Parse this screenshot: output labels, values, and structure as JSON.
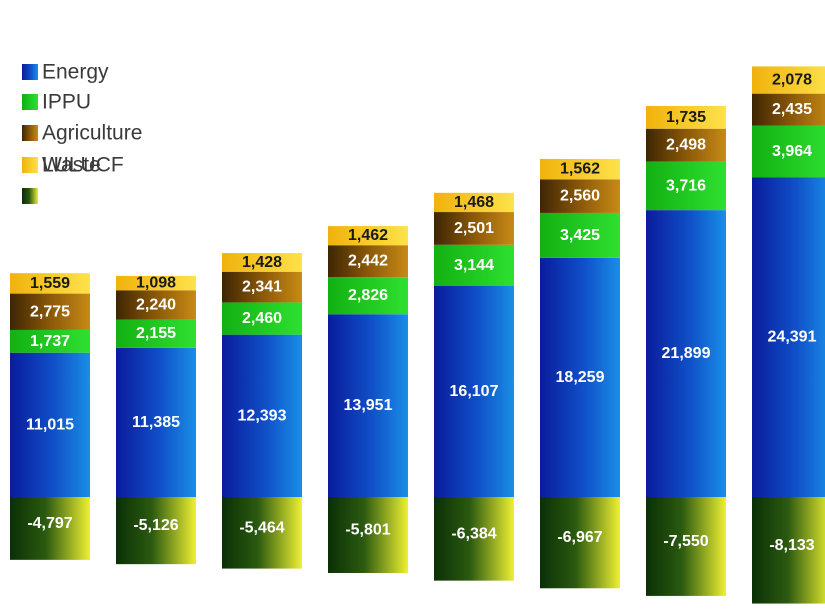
{
  "chart_data": {
    "type": "bar",
    "stacked": true,
    "title": "",
    "xlabel": "",
    "ylabel": "",
    "legend_position": "top-left",
    "grid": false,
    "series": [
      {
        "name": "Energy",
        "color": "#1030b8",
        "values": [
          11015,
          11385,
          12393,
          13951,
          16107,
          18259,
          21899,
          24391
        ]
      },
      {
        "name": "IPPU",
        "color": "#18c818",
        "values": [
          1737,
          2155,
          2460,
          2826,
          3144,
          3425,
          3716,
          3964
        ]
      },
      {
        "name": "Agriculture",
        "color": "#7a4e08",
        "values": [
          2775,
          2240,
          2341,
          2442,
          2501,
          2560,
          2498,
          2435
        ]
      },
      {
        "name": "Waste",
        "color": "#f4c20f",
        "values": [
          1559,
          1098,
          1428,
          1462,
          1468,
          1562,
          1735,
          2078
        ]
      },
      {
        "name": "LULUCF",
        "color": "#0e3a08",
        "values": [
          -4797,
          -5126,
          -5464,
          -5801,
          -6384,
          -6967,
          -7550,
          -8133
        ]
      }
    ],
    "labels": {
      "Energy": [
        "11,015",
        "11,385",
        "12,393",
        "13,951",
        "16,107",
        "18,259",
        "21,899",
        "24,391"
      ],
      "IPPU": [
        "1,737",
        "2,155",
        "2,460",
        "2,826",
        "3,144",
        "3,425",
        "3,716",
        "3,964"
      ],
      "Agriculture": [
        "2,775",
        "2,240",
        "2,341",
        "2,442",
        "2,501",
        "2,560",
        "2,498",
        "2,435"
      ],
      "Waste": [
        "1,559",
        "1,098",
        "1,428",
        "1,462",
        "1,468",
        "1,562",
        "1,735",
        "2,078"
      ],
      "LULUCF": [
        "-4,797",
        "-5,126",
        "-5,464",
        "-5,801",
        "-6,384",
        "-6,967",
        "-7,550",
        "-8,133"
      ]
    }
  }
}
